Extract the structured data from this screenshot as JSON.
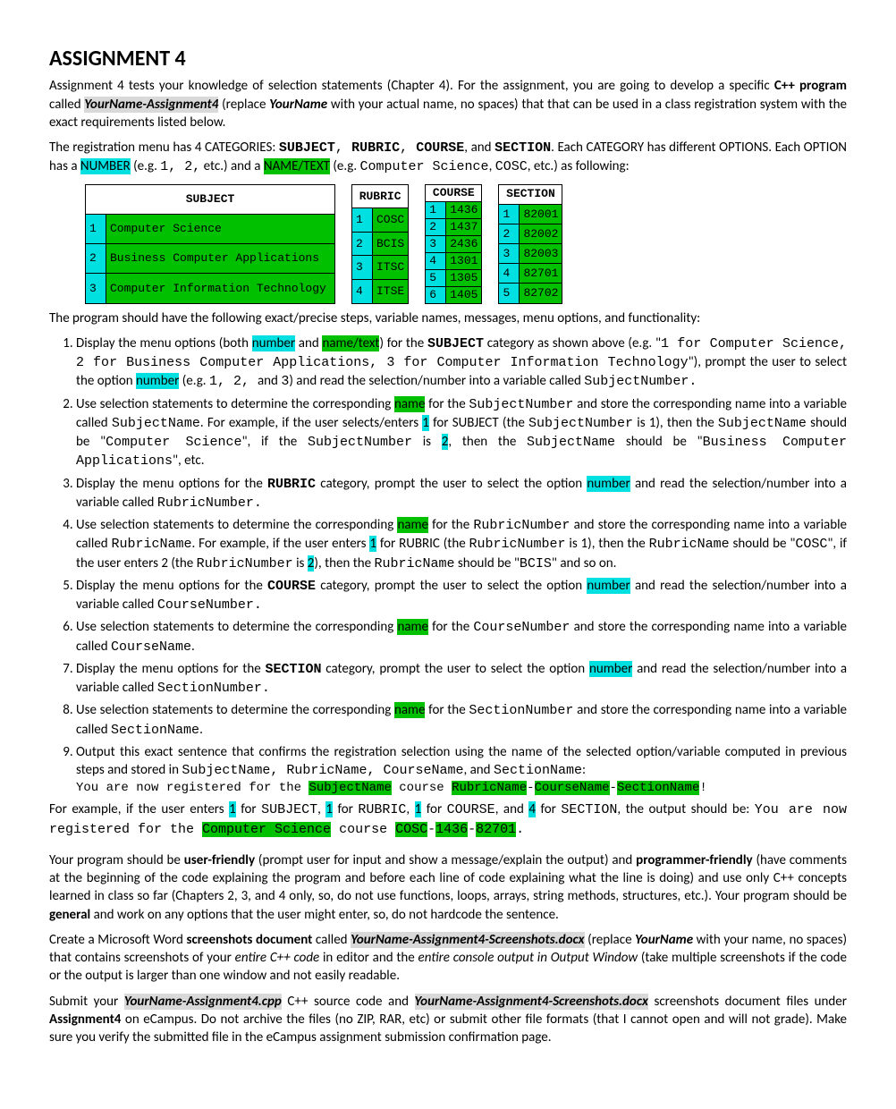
{
  "title": "ASSIGNMENT 4",
  "intro1a": "Assignment 4 tests your knowledge of selection statements (Chapter 4). For the assignment, you are going to develop a specific ",
  "intro1b": "C++ program",
  "intro1c": " called ",
  "intro1d": "YourName-Assignment4",
  "intro1e": " (replace ",
  "intro1f": "YourName",
  "intro1g": " with your actual name, no spaces) that that can be used in a class registration system with the exact requirements listed below.",
  "intro2a": "The registration menu has 4 CATEGORIES: ",
  "intro2b": "SUBJECT",
  "intro2c": "RUBRIC",
  "intro2d": "COURSE",
  "intro2e": "SECTION",
  "intro2f": ". Each CATEGORY has different OPTIONS. Each OPTION has a ",
  "intro2g": "NUMBER",
  "intro2h": " (e.g. ",
  "intro2i": "1, 2,",
  "intro2j": " etc.) and a ",
  "intro2k": "NAME/TEXT",
  "intro2l": " (e.g. ",
  "intro2m": "Computer Science",
  "intro2n": "COSC",
  "intro2o": ", etc.) as following:",
  "subject_header": "SUBJECT",
  "subject_rows": [
    {
      "n": "1",
      "t": "Computer Science"
    },
    {
      "n": "2",
      "t": "Business Computer Applications"
    },
    {
      "n": "3",
      "t": "Computer Information Technology"
    }
  ],
  "rubric_header": "RUBRIC",
  "rubric_rows": [
    {
      "n": "1",
      "t": "COSC"
    },
    {
      "n": "2",
      "t": "BCIS"
    },
    {
      "n": "3",
      "t": "ITSC"
    },
    {
      "n": "4",
      "t": "ITSE"
    }
  ],
  "course_header": "COURSE",
  "course_rows": [
    {
      "n": "1",
      "t": "1436"
    },
    {
      "n": "2",
      "t": "1437"
    },
    {
      "n": "3",
      "t": "2436"
    },
    {
      "n": "4",
      "t": "1301"
    },
    {
      "n": "5",
      "t": "1305"
    },
    {
      "n": "6",
      "t": "1405"
    }
  ],
  "section_header": "SECTION",
  "section_rows": [
    {
      "n": "1",
      "t": "82001"
    },
    {
      "n": "2",
      "t": "82002"
    },
    {
      "n": "3",
      "t": "82003"
    },
    {
      "n": "4",
      "t": "82701"
    },
    {
      "n": "5",
      "t": "82702"
    }
  ],
  "lead": "The program should have the following exact/precise steps, variable names, messages, menu options, and functionality:",
  "s1": {
    "a": "Display the menu options (both ",
    "b": "number",
    "c": " and ",
    "d": "name/text",
    "e": ") for the ",
    "f": "SUBJECT",
    "g": " category as shown above (e.g. \"",
    "h": "1 for Computer Science, 2 for Business Computer Applications, 3 for Computer Information Technology",
    "i": "\"), prompt the user to select the option ",
    "j": "number",
    "k": " (e.g. ",
    "l": "1, 2, ",
    "m": "and ",
    "n": "3",
    "o": ") and read the selection/number into a variable called ",
    "p": "SubjectNumber."
  },
  "s2": {
    "a": "Use selection statements to determine the corresponding ",
    "b": "name",
    "c": " for the ",
    "d": "SubjectNumber",
    "e": " and store the corresponding name into a variable called ",
    "f": "SubjectName",
    "g": ". For example, if the user selects/enters ",
    "h": "1",
    "i": " for SUBJECT (the ",
    "j": "SubjectNumber",
    "k": " is 1), then the ",
    "l": "SubjectName",
    "m": " should be \"",
    "n": "Computer Science",
    "o": "\", if the ",
    "p": "SubjectNumber",
    "q": " is ",
    "r": "2",
    "s": ", then the ",
    "t": "SubjectName",
    "u": " should be \"",
    "v": "Business Computer Applications",
    "w": "\", etc."
  },
  "s3": {
    "a": "Display the menu options for the ",
    "b": "RUBRIC",
    "c": " category, prompt the user to select the option ",
    "d": "number",
    "e": " and read the selection/number into a variable called ",
    "f": "RubricNumber."
  },
  "s4": {
    "a": "Use selection statements to determine the corresponding ",
    "b": "name",
    "c": " for the ",
    "d": "RubricNumber",
    "e": " and store the corresponding name into a variable called ",
    "f": "RubricName",
    "g": ". For example, if the user enters ",
    "h": "1",
    "i": " for RUBRIC (the ",
    "j": "RubricNumber",
    "k": " is 1), then the ",
    "l": "RubricName",
    "m": " should be \"",
    "n": "COSC",
    "o": "\", if the user enters 2 (the ",
    "p": "RubricNumber",
    "q": " is ",
    "r": "2",
    "s": "), then the ",
    "t": "RubricName",
    "u": " should be \"",
    "v": "BCIS",
    "w": "\" and so on."
  },
  "s5": {
    "a": "Display the menu options for the ",
    "b": "COURSE",
    "c": " category, prompt the user to select the option ",
    "d": "number",
    "e": " and read the selection/number into a variable called ",
    "f": "CourseNumber."
  },
  "s6": {
    "a": "Use selection statements to determine the corresponding ",
    "b": "name",
    "c": " for the ",
    "d": "CourseNumber",
    "e": " and store the corresponding name into a variable called ",
    "f": "CourseName",
    "g": "."
  },
  "s7": {
    "a": "Display the menu options for the ",
    "b": "SECTION",
    "c": " category, prompt the user to select the option ",
    "d": "number",
    "e": " and read the selection/number into a variable called ",
    "f": "SectionNumber."
  },
  "s8": {
    "a": "Use selection statements to determine the corresponding ",
    "b": "name",
    "c": " for the ",
    "d": "SectionNumber",
    "e": " and store the corresponding name into a variable called ",
    "f": "SectionName",
    "g": "."
  },
  "s9": {
    "a": "Output this exact sentence that confirms the registration selection using the name of the selected option/variable computed in previous steps and stored in ",
    "b": "SubjectName, RubricName, CourseName",
    "c": ", and ",
    "d": "SectionName",
    "e": ":"
  },
  "out1a": "You are now registered for the ",
  "out1b": "SubjectName",
  "out1c": " course ",
  "out1d": "RubricName",
  "out1e": "-",
  "out1f": "CourseName",
  "out1g": "-",
  "out1h": "SectionName",
  "out1i": "!",
  "exA": "For example, if the user enters ",
  "exB": "1",
  "exC": " for ",
  "exD": "SUBJECT",
  "exE": "1",
  "exF": "RUBRIC",
  "exG": "1",
  "exH": "COURSE",
  "exI": ", and ",
  "exJ": "4",
  "exK": "SECTION",
  "exL": ", the output should be: ",
  "exM": "You are now registered for the ",
  "exN": "Computer Science",
  "exO": " course ",
  "exP": "COSC",
  "exQ": "1436",
  "exR": "82701",
  "p3a": "Your program should be ",
  "p3b": "user-friendly",
  "p3c": " (prompt user for input and show a message/explain the output) and ",
  "p3d": "programmer-friendly",
  "p3e": " (have comments at the beginning of the code explaining the program and before each line of code explaining what the line is doing) and use only C++ concepts learned in class so far (Chapters 2, 3, and 4 only, so, do not use functions, loops, arrays, string methods, structures, etc.). Your program should be ",
  "p3f": "general",
  "p3g": " and work on any options that the user might enter, so, do not hardcode the sentence.",
  "p4a": "Create a Microsoft Word ",
  "p4b": "screenshots document",
  "p4c": " called ",
  "p4d": "YourName-Assignment4-Screenshots.docx",
  "p4e": " (replace ",
  "p4f": "YourName",
  "p4g": " with your name, no spaces) that contains screenshots of your ",
  "p4h": "entire C++ code",
  "p4i": " in editor and the ",
  "p4j": "entire console output in Output Window",
  "p4k": " (take multiple screenshots if the code or the output is larger than one window and not easily readable.",
  "p5a": "Submit your ",
  "p5b": "YourName-Assignment4.cpp",
  "p5c": " C++ source code and ",
  "p5d": "YourName-Assignment4-Screenshots.docx",
  "p5e": " screenshots document files under ",
  "p5f": "Assignment4",
  "p5g": " on eCampus. Do not archive the files (no ZIP, RAR, etc) or submit other file formats (that I cannot open and will not grade). Make sure you verify the submitted file in the eCampus assignment submission confirmation page."
}
